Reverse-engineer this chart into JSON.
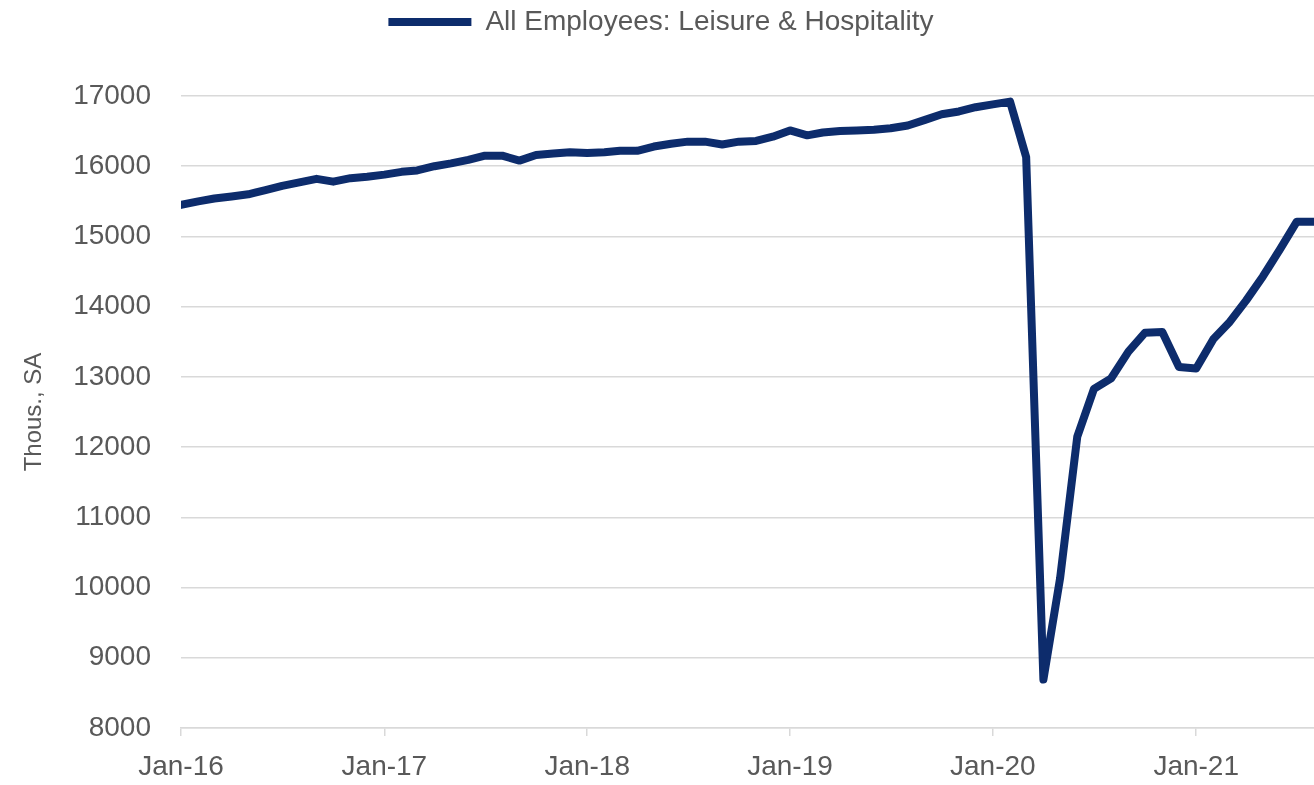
{
  "chart_data": {
    "type": "line",
    "ylabel": "Thous., SA",
    "x": [
      "2016-01",
      "2016-02",
      "2016-03",
      "2016-04",
      "2016-05",
      "2016-06",
      "2016-07",
      "2016-08",
      "2016-09",
      "2016-10",
      "2016-11",
      "2016-12",
      "2017-01",
      "2017-02",
      "2017-03",
      "2017-04",
      "2017-05",
      "2017-06",
      "2017-07",
      "2017-08",
      "2017-09",
      "2017-10",
      "2017-11",
      "2017-12",
      "2018-01",
      "2018-02",
      "2018-03",
      "2018-04",
      "2018-05",
      "2018-06",
      "2018-07",
      "2018-08",
      "2018-09",
      "2018-10",
      "2018-11",
      "2018-12",
      "2019-01",
      "2019-02",
      "2019-03",
      "2019-04",
      "2019-05",
      "2019-06",
      "2019-07",
      "2019-08",
      "2019-09",
      "2019-10",
      "2019-11",
      "2019-12",
      "2020-01",
      "2020-02",
      "2020-03",
      "2020-04",
      "2020-05",
      "2020-06",
      "2020-07",
      "2020-08",
      "2020-09",
      "2020-10",
      "2020-11",
      "2020-12",
      "2021-01",
      "2021-02",
      "2021-03",
      "2021-04",
      "2021-05",
      "2021-06",
      "2021-07",
      "2021-08"
    ],
    "series": [
      {
        "name": "All Employees: Leisure & Hospitality",
        "color": "#0d2c6c",
        "values": [
          15450,
          15500,
          15540,
          15570,
          15600,
          15660,
          15720,
          15770,
          15820,
          15780,
          15830,
          15850,
          15880,
          15920,
          15940,
          16000,
          16040,
          16090,
          16150,
          16150,
          16080,
          16160,
          16180,
          16200,
          16190,
          16200,
          16220,
          16220,
          16280,
          16320,
          16350,
          16350,
          16310,
          16350,
          16360,
          16420,
          16510,
          16440,
          16480,
          16500,
          16510,
          16520,
          16540,
          16580,
          16660,
          16740,
          16780,
          16840,
          16880,
          16920,
          16130,
          8690,
          10130,
          12150,
          12830,
          12980,
          13360,
          13630,
          13640,
          13140,
          13120,
          13540,
          13770,
          14090,
          14430,
          14820,
          15210,
          15210
        ]
      }
    ],
    "xlim": [
      "2016-01",
      "2021-08"
    ],
    "xticks": [
      {
        "value": "2016-01",
        "label": "Jan-16"
      },
      {
        "value": "2017-01",
        "label": "Jan-17"
      },
      {
        "value": "2018-01",
        "label": "Jan-18"
      },
      {
        "value": "2019-01",
        "label": "Jan-19"
      },
      {
        "value": "2020-01",
        "label": "Jan-20"
      },
      {
        "value": "2021-01",
        "label": "Jan-21"
      }
    ],
    "ylim": [
      8000,
      17000
    ],
    "yticks": [
      8000,
      9000,
      10000,
      11000,
      12000,
      13000,
      14000,
      15000,
      16000,
      17000
    ],
    "grid": "y",
    "legend": "top",
    "marker": "none"
  }
}
